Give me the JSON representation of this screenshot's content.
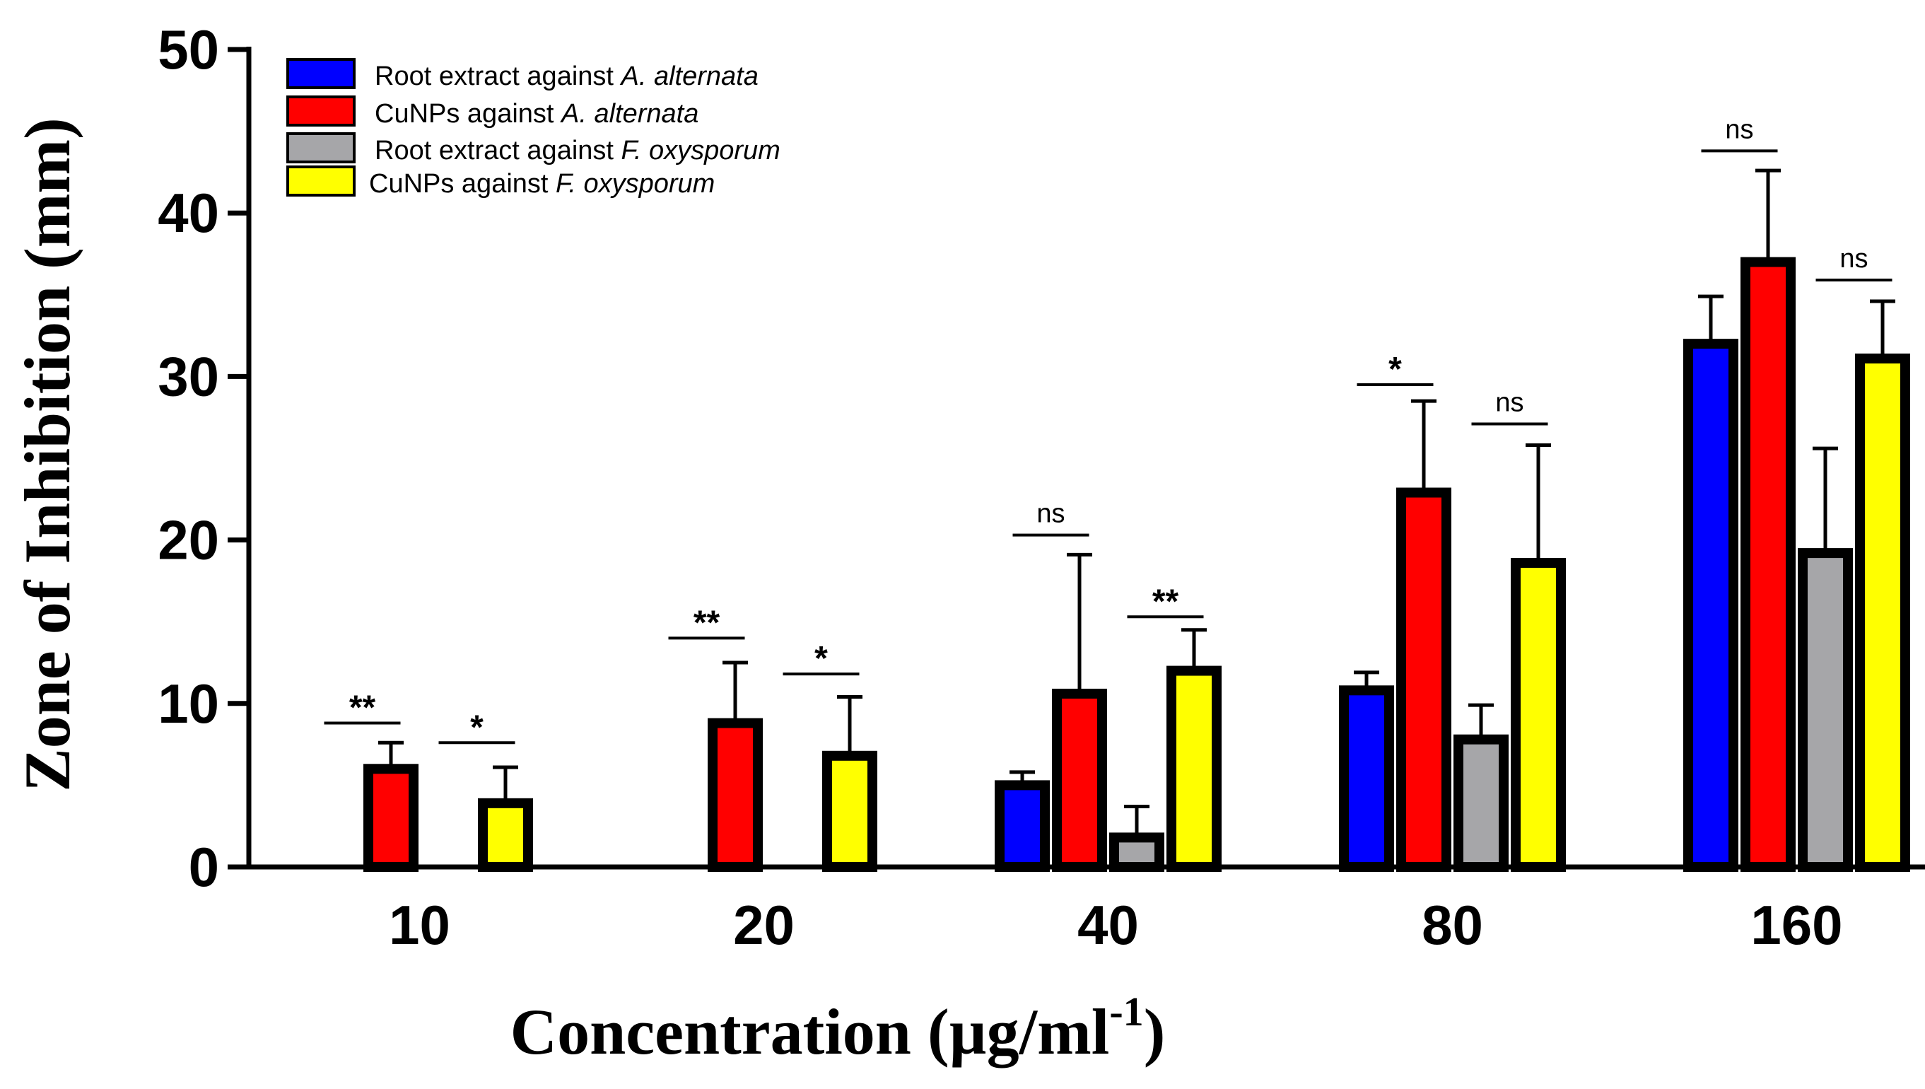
{
  "chart_data": {
    "type": "bar",
    "title": "",
    "xlabel": "Concentration (µg/ml",
    "xlabel_sup": "-1",
    "xlabel_close": ")",
    "ylabel": "Zone of Inhibition (mm)",
    "ylim": [
      0,
      50
    ],
    "yticks": [
      0,
      10,
      20,
      30,
      40,
      50
    ],
    "categories": [
      "10",
      "20",
      "40",
      "80",
      "160"
    ],
    "series": [
      {
        "name": "Root extract against A. alternata",
        "legend_prefix": "Root extract against ",
        "legend_italic": "A. alternata",
        "color": "#0000ff",
        "values": [
          0,
          0,
          5,
          10.8,
          32
        ],
        "errors": [
          0,
          0,
          0.8,
          1.1,
          2.9
        ]
      },
      {
        "name": "CuNPs against A. alternata",
        "legend_prefix": "CuNPs against ",
        "legend_italic": "A. alternata",
        "color": "#ff0000",
        "values": [
          6,
          8.8,
          10.6,
          22.9,
          37
        ],
        "errors": [
          1.6,
          3.7,
          8.5,
          5.6,
          5.6
        ]
      },
      {
        "name": "Root extract against F. oxysporum",
        "legend_prefix": "Root extract against ",
        "legend_italic": "F. oxysporum",
        "color": "#a6a6a9",
        "values": [
          0,
          0,
          1.8,
          7.8,
          19.2
        ],
        "errors": [
          0,
          0,
          1.9,
          2.1,
          6.4
        ]
      },
      {
        "name": "CuNPs against F. oxysporum",
        "legend_prefix": "CuNPs against ",
        "legend_italic": "F. oxysporum",
        "color": "#ffff00",
        "values": [
          3.9,
          6.8,
          12,
          18.6,
          31.1
        ],
        "errors": [
          2.2,
          3.6,
          2.5,
          7.2,
          3.5
        ]
      }
    ],
    "significance": [
      {
        "category": 0,
        "over": "alternata",
        "label": "**",
        "bar_y": 8.8,
        "style": "star"
      },
      {
        "category": 0,
        "over": "oxysporum",
        "label": "*",
        "bar_y": 7.6,
        "style": "star"
      },
      {
        "category": 1,
        "over": "alternata",
        "label": "**",
        "bar_y": 14,
        "style": "star"
      },
      {
        "category": 1,
        "over": "oxysporum",
        "label": "*",
        "bar_y": 11.8,
        "style": "star"
      },
      {
        "category": 2,
        "over": "alternata",
        "label": "ns",
        "bar_y": 20.3,
        "style": "text"
      },
      {
        "category": 2,
        "over": "oxysporum",
        "label": "**",
        "bar_y": 15.3,
        "style": "star"
      },
      {
        "category": 3,
        "over": "alternata",
        "label": "*",
        "bar_y": 29.5,
        "style": "star"
      },
      {
        "category": 3,
        "over": "oxysporum",
        "label": "ns",
        "bar_y": 27.1,
        "style": "text"
      },
      {
        "category": 4,
        "over": "alternata",
        "label": "ns",
        "bar_y": 43.8,
        "style": "text"
      },
      {
        "category": 4,
        "over": "oxysporum",
        "label": "ns",
        "bar_y": 35.9,
        "style": "text"
      }
    ],
    "legend_position": "top-left"
  }
}
